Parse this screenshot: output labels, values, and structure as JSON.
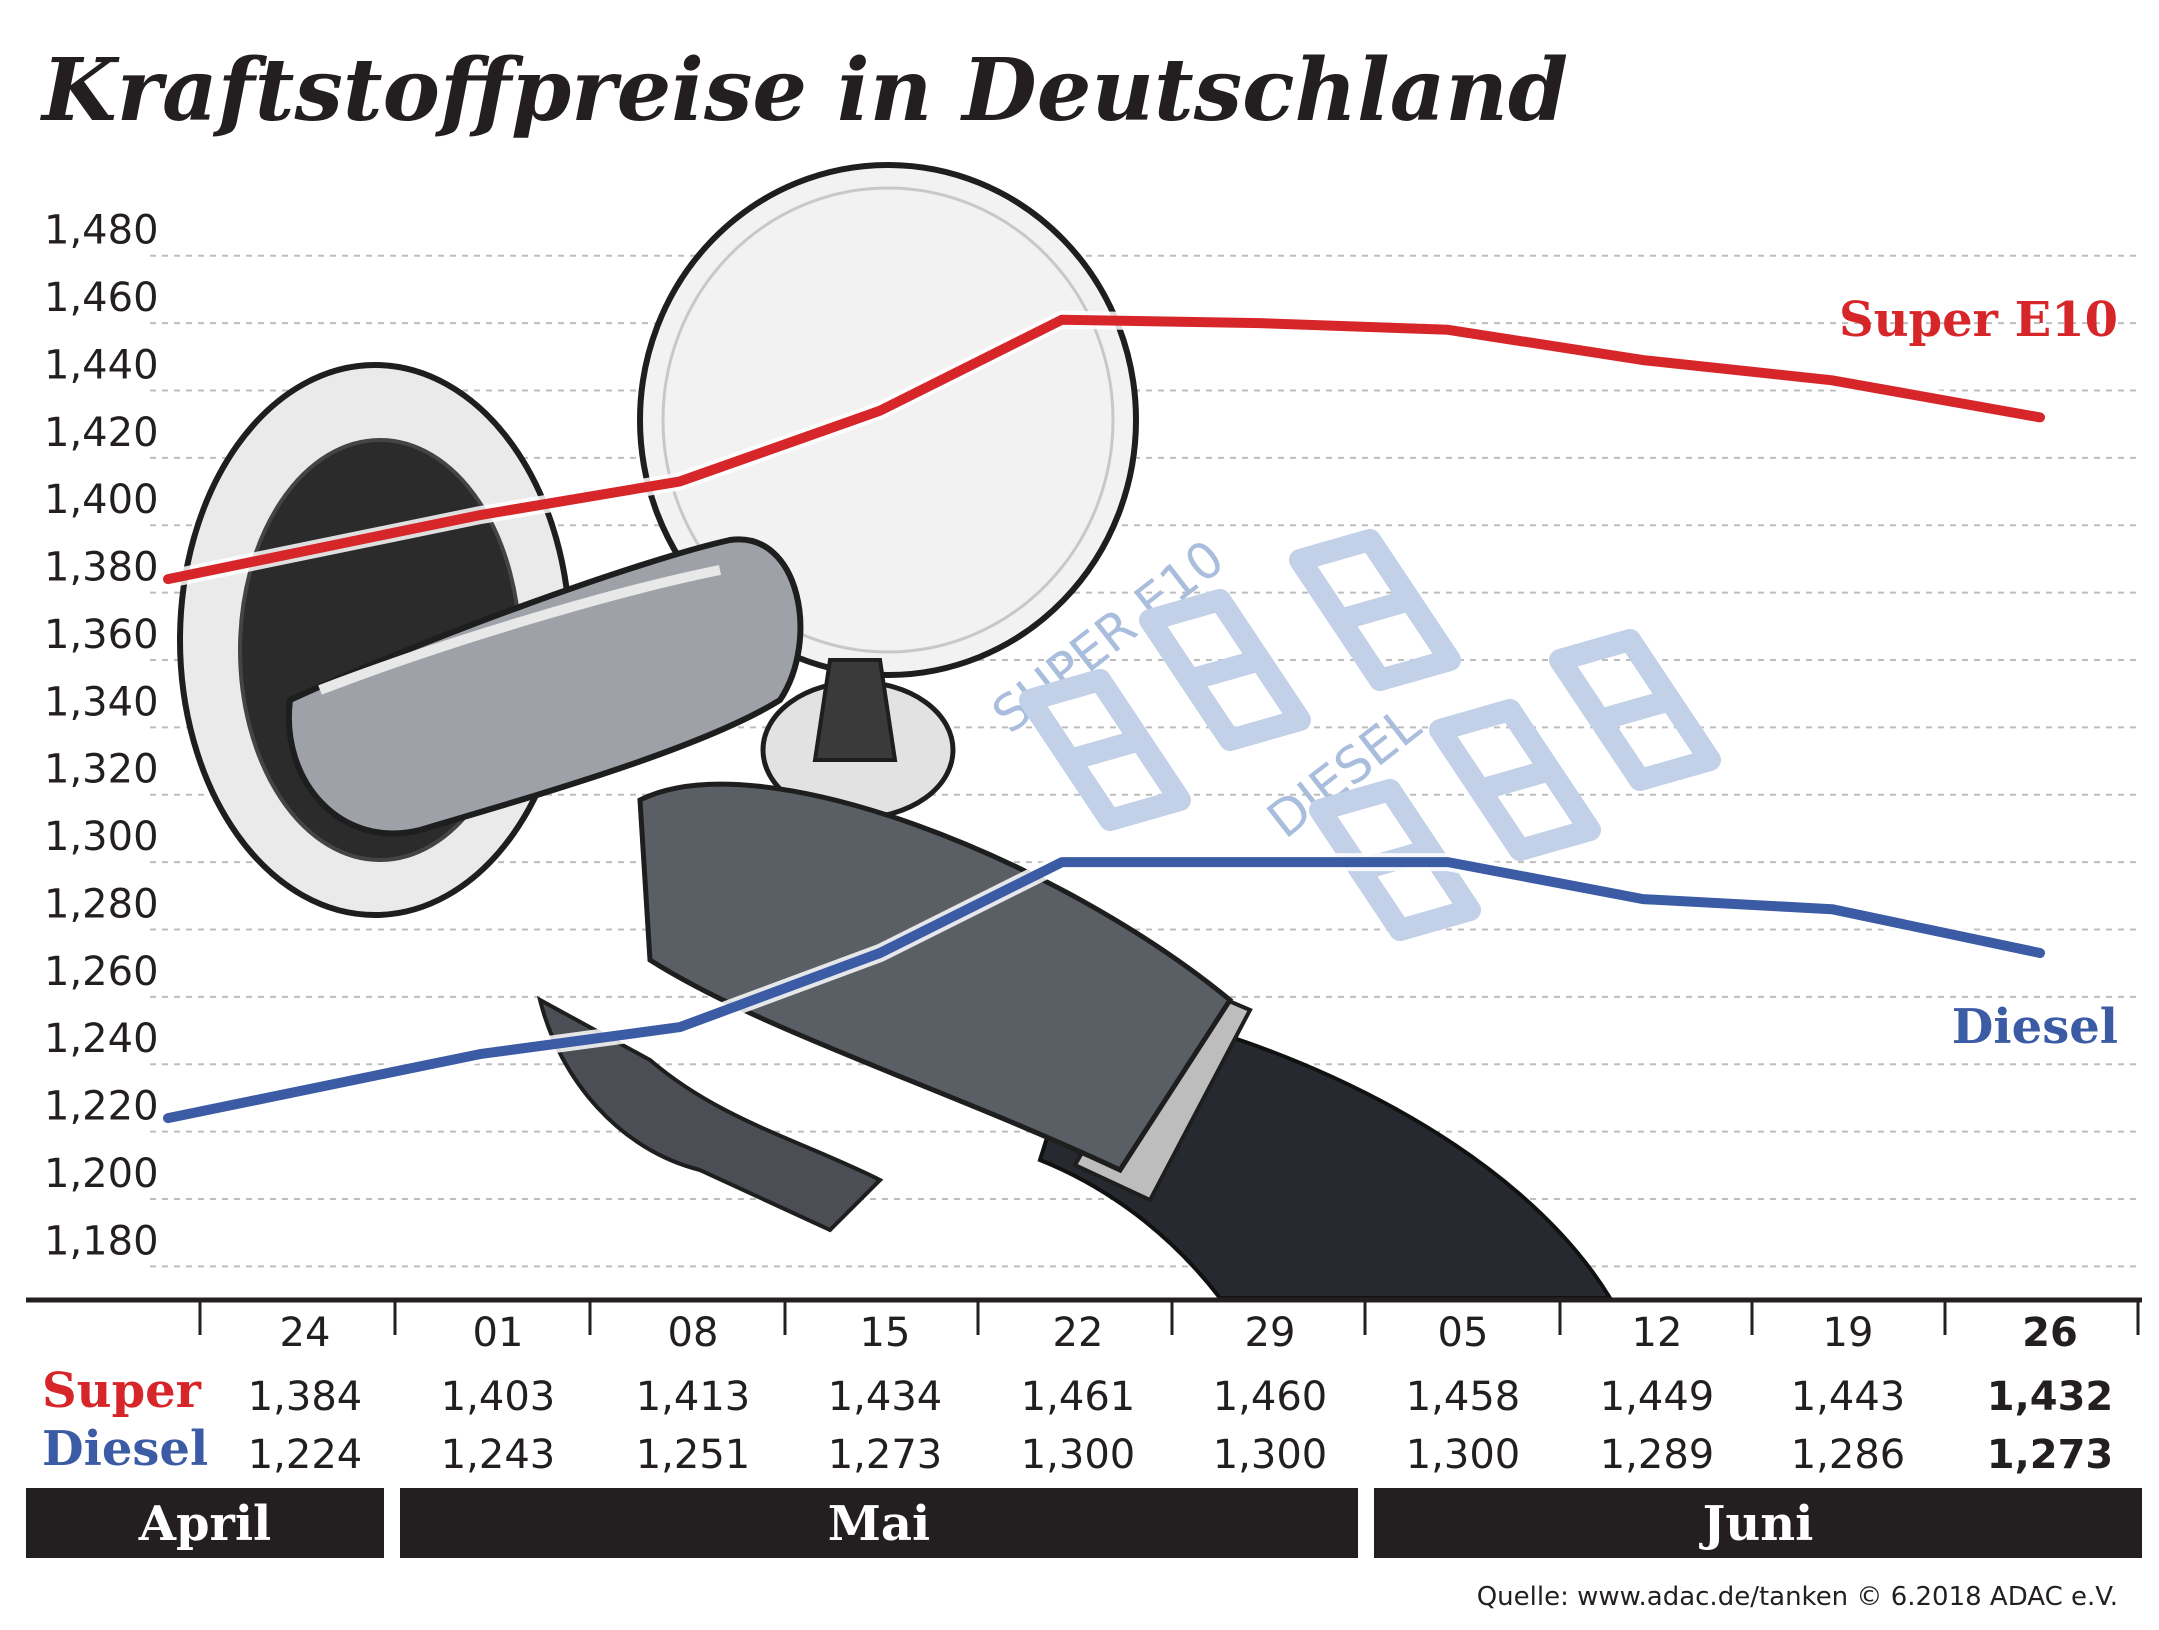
{
  "title": "Kraftstoffpreise in Deutschland",
  "source": "Quelle: www.adac.de/tanken   © 6.2018  ADAC e.V.",
  "colors": {
    "super": "#d7262a",
    "diesel": "#3b5ba5",
    "text": "#231f20",
    "month_bar": "#231f20",
    "grid": "#bdbdbd"
  },
  "decoration": {
    "pump_nozzle": "fuel-nozzle-icon",
    "display_super": "SUPER E10",
    "display_diesel": "DIESEL"
  },
  "table": {
    "super_label": "Super",
    "diesel_label": "Diesel"
  },
  "months": [
    {
      "label": "April",
      "from": 0,
      "to": 0
    },
    {
      "label": "Mai",
      "from": 1,
      "to": 5
    },
    {
      "label": "Juni",
      "from": 6,
      "to": 9
    }
  ],
  "chart_data": {
    "type": "line",
    "categories": [
      "24",
      "01",
      "08",
      "15",
      "22",
      "29",
      "05",
      "12",
      "19",
      "26"
    ],
    "highlight_category": "26",
    "series": [
      {
        "name": "Super E10",
        "key": "super",
        "color": "#d7262a",
        "values": [
          1.384,
          1.403,
          1.413,
          1.434,
          1.461,
          1.46,
          1.458,
          1.449,
          1.443,
          1.432
        ],
        "labels": [
          "1,384",
          "1,403",
          "1,413",
          "1,434",
          "1,461",
          "1,460",
          "1,458",
          "1,449",
          "1,443",
          "1,432"
        ]
      },
      {
        "name": "Diesel",
        "key": "diesel",
        "color": "#3b5ba5",
        "values": [
          1.224,
          1.243,
          1.251,
          1.273,
          1.3,
          1.3,
          1.3,
          1.289,
          1.286,
          1.273
        ],
        "labels": [
          "1,224",
          "1,243",
          "1,251",
          "1,273",
          "1,300",
          "1,300",
          "1,300",
          "1,289",
          "1,286",
          "1,273"
        ]
      }
    ],
    "yticks": [
      "1,180",
      "1,200",
      "1,220",
      "1,240",
      "1,260",
      "1,280",
      "1,300",
      "1,320",
      "1,340",
      "1,360",
      "1,380",
      "1,400",
      "1,420",
      "1,440",
      "1,460",
      "1,480"
    ],
    "ylim": [
      1.17,
      1.49
    ],
    "grid": true,
    "legend": "series labels at right end of lines"
  }
}
